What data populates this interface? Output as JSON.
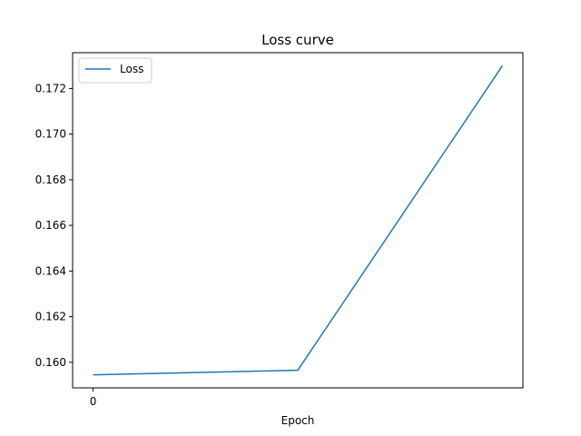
{
  "chart_data": {
    "type": "line",
    "title": "Loss curve",
    "xlabel": "Epoch",
    "ylabel": "",
    "x": [
      0,
      1,
      2
    ],
    "x_ticks": [
      0
    ],
    "x_tick_labels": [
      "0"
    ],
    "xlim": [
      -0.1,
      2.1
    ],
    "series": [
      {
        "name": "Loss",
        "color": "#1f77b4",
        "values": [
          0.15945,
          0.15965,
          0.173
        ]
      }
    ],
    "ylim": [
      0.15888,
      0.17357
    ],
    "y_ticks": [
      0.16,
      0.162,
      0.164,
      0.166,
      0.168,
      0.17,
      0.172
    ],
    "y_tick_labels": [
      "0.160",
      "0.162",
      "0.164",
      "0.166",
      "0.168",
      "0.170",
      "0.172"
    ],
    "grid": false,
    "legend_position": "top-left"
  }
}
